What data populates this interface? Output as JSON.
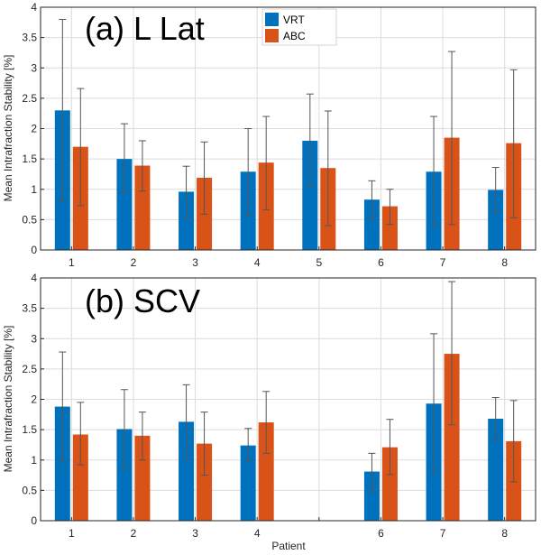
{
  "chart_data": [
    {
      "type": "bar",
      "title": "(a) L Lat",
      "ylabel": "Mean Intrafraction Stability [%]",
      "xlabel": "",
      "ylim": [
        0,
        4
      ],
      "yticks": [
        "0",
        "0.5",
        "1",
        "1.5",
        "2",
        "2.5",
        "3",
        "3.5",
        "4"
      ],
      "categories": [
        "1",
        "2",
        "3",
        "4",
        "5",
        "6",
        "7",
        "8"
      ],
      "grid": true,
      "legend_position": "top-center",
      "series": [
        {
          "name": "VRT",
          "color": "#0072BD",
          "values": [
            2.3,
            1.5,
            0.96,
            1.29,
            1.8,
            0.83,
            1.29,
            0.99
          ],
          "err_low": [
            0.8,
            0.95,
            0.53,
            0.57,
            1.03,
            0.51,
            0.38,
            0.62
          ],
          "err_high": [
            3.8,
            2.08,
            1.38,
            2.0,
            2.57,
            1.14,
            2.2,
            1.36
          ]
        },
        {
          "name": "ABC",
          "color": "#D95319",
          "values": [
            1.7,
            1.39,
            1.19,
            1.44,
            1.35,
            0.72,
            1.85,
            1.76
          ],
          "err_low": [
            0.73,
            0.97,
            0.59,
            0.66,
            0.4,
            0.42,
            0.42,
            0.53
          ],
          "err_high": [
            2.66,
            1.8,
            1.78,
            2.2,
            2.29,
            1.0,
            3.27,
            2.97
          ]
        }
      ]
    },
    {
      "type": "bar",
      "title": "(b) SCV",
      "ylabel": "Mean Intrafraction Stability [%]",
      "xlabel": "Patient",
      "ylim": [
        0,
        4
      ],
      "yticks": [
        "0",
        "0.5",
        "1",
        "1.5",
        "2",
        "2.5",
        "3",
        "3.5",
        "4"
      ],
      "categories": [
        "1",
        "2",
        "3",
        "4",
        "",
        "6",
        "7",
        "8"
      ],
      "grid": true,
      "series": [
        {
          "name": "VRT",
          "color": "#0072BD",
          "values": [
            1.88,
            1.51,
            1.63,
            1.24,
            null,
            0.81,
            1.93,
            1.68
          ],
          "err_low": [
            0.97,
            0.87,
            1.02,
            0.97,
            null,
            0.49,
            0.79,
            1.33
          ],
          "err_high": [
            2.78,
            2.16,
            2.24,
            1.52,
            null,
            1.11,
            3.08,
            2.03
          ]
        },
        {
          "name": "ABC",
          "color": "#D95319",
          "values": [
            1.42,
            1.4,
            1.27,
            1.62,
            null,
            1.21,
            2.75,
            1.31
          ],
          "err_low": [
            0.92,
            1.0,
            0.75,
            1.11,
            null,
            0.76,
            1.58,
            0.64
          ],
          "err_high": [
            1.95,
            1.79,
            1.79,
            2.13,
            null,
            1.67,
            3.94,
            1.98
          ]
        }
      ]
    }
  ]
}
